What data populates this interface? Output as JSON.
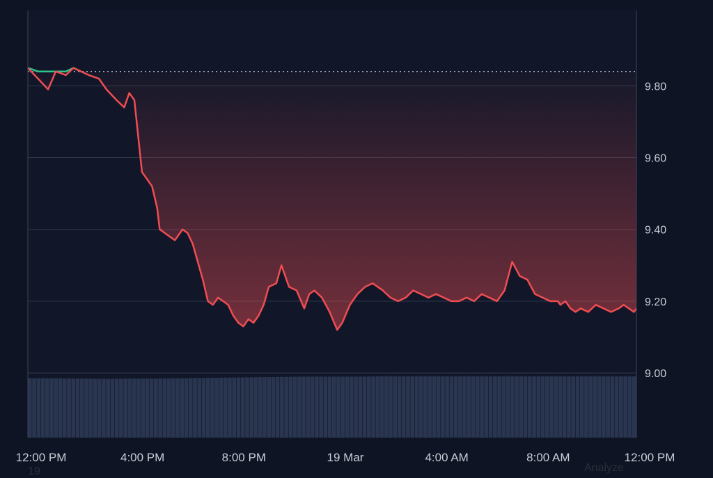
{
  "colors": {
    "background": "#0e1424",
    "plot_background": "#111729",
    "grid": "#2f3a4d",
    "down_line": "#ef4d52",
    "up_line": "#2fc48a",
    "reference_line": "#c9cdd6",
    "volume_bar": "#2a3550",
    "tick_text": "#c9cdd6"
  },
  "footer": {
    "left_text": "19",
    "right_text": "Analyze"
  },
  "chart_data": {
    "type": "area",
    "title": "",
    "xlabel": "",
    "ylabel": "",
    "ylim": [
      8.82,
      10.01
    ],
    "y_ticks": [
      "9.00",
      "9.20",
      "9.40",
      "9.60",
      "9.80"
    ],
    "x_ticks": [
      "12:00 PM",
      "4:00 PM",
      "8:00 PM",
      "19 Mar",
      "4:00 AM",
      "8:00 AM",
      "12:00 PM"
    ],
    "x_tick_hours": [
      0,
      4,
      8,
      12,
      16,
      20,
      24
    ],
    "reference_value": 9.84,
    "grid": true,
    "series": [
      {
        "x_hours": [
          0,
          0.4,
          0.8,
          1.1,
          1.5,
          1.8,
          2.1,
          2.4,
          2.8,
          3.1,
          3.5,
          3.8,
          4.0,
          4.2,
          4.5,
          4.7,
          4.9,
          5.1,
          5.2,
          5.4,
          5.6,
          5.8,
          6.0,
          6.1,
          6.3,
          6.5,
          6.7,
          6.9,
          7.1,
          7.3,
          7.5,
          7.7,
          7.9,
          8.1,
          8.3,
          8.5,
          8.7,
          8.9,
          9.1,
          9.3,
          9.5,
          9.8,
          10.0,
          10.3,
          10.6,
          10.9,
          11.1,
          11.3,
          11.6,
          11.9,
          12.2,
          12.4,
          12.7,
          13.0,
          13.3,
          13.6,
          13.8,
          14.0,
          14.3,
          14.6,
          14.9,
          15.2,
          15.5,
          15.8,
          16.1,
          16.4,
          16.7,
          17.0,
          17.3,
          17.6,
          17.9,
          18.2,
          18.5,
          18.8,
          19.1,
          19.4,
          19.7,
          20.0,
          20.3,
          20.6,
          20.9,
          21.0,
          21.2,
          21.4,
          21.6,
          21.8,
          22.1,
          22.4,
          22.7,
          23.0,
          23.3,
          23.5,
          23.7,
          23.9,
          24.0
        ],
        "values": [
          9.85,
          9.82,
          9.79,
          9.84,
          9.83,
          9.85,
          9.84,
          9.83,
          9.82,
          9.79,
          9.76,
          9.74,
          9.78,
          9.76,
          9.56,
          9.54,
          9.52,
          9.46,
          9.4,
          9.39,
          9.38,
          9.37,
          9.39,
          9.4,
          9.39,
          9.36,
          9.31,
          9.26,
          9.2,
          9.19,
          9.21,
          9.2,
          9.19,
          9.16,
          9.14,
          9.13,
          9.15,
          9.14,
          9.16,
          9.19,
          9.24,
          9.25,
          9.3,
          9.24,
          9.23,
          9.18,
          9.22,
          9.23,
          9.21,
          9.17,
          9.12,
          9.14,
          9.19,
          9.22,
          9.24,
          9.25,
          9.24,
          9.23,
          9.21,
          9.2,
          9.21,
          9.23,
          9.22,
          9.21,
          9.22,
          9.21,
          9.2,
          9.2,
          9.21,
          9.2,
          9.22,
          9.21,
          9.2,
          9.23,
          9.31,
          9.27,
          9.26,
          9.22,
          9.21,
          9.2,
          9.2,
          9.19,
          9.2,
          9.18,
          9.17,
          9.18,
          9.17,
          9.19,
          9.18,
          9.17,
          9.18,
          9.19,
          9.18,
          9.17,
          9.18
        ]
      }
    ],
    "volume_level": [
      0.96,
      0.96,
      0.955,
      0.95,
      0.955,
      0.955,
      0.96,
      0.965,
      0.97,
      0.975,
      0.98,
      0.985,
      0.985,
      0.985,
      0.99,
      0.99,
      0.99,
      0.99,
      0.99,
      0.99,
      0.99,
      0.99,
      0.99,
      0.99,
      0.99
    ]
  }
}
